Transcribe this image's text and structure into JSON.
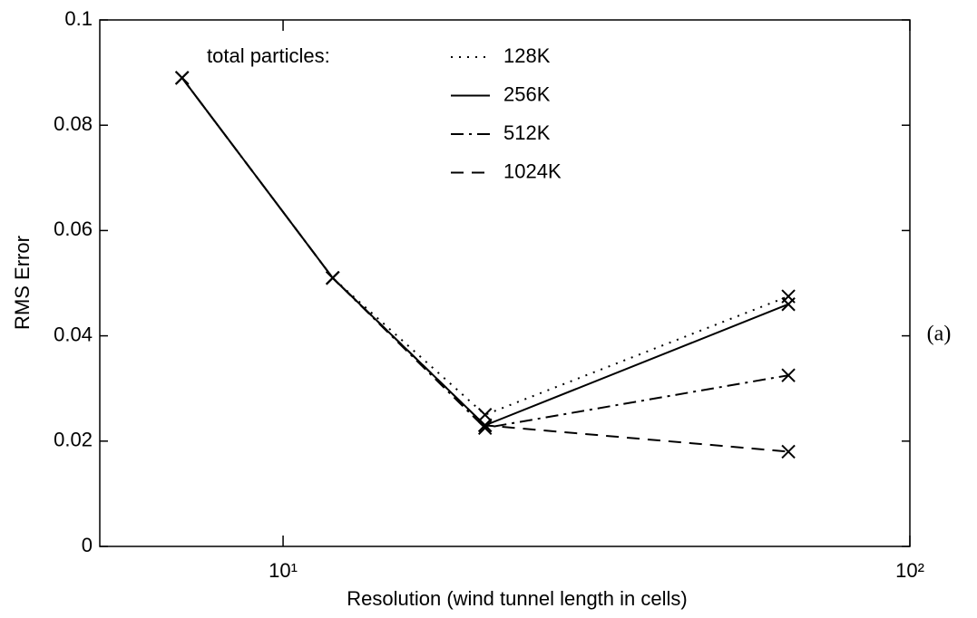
{
  "chart_data": {
    "type": "line",
    "xlabel": "Resolution (wind tunnel length in cells)",
    "ylabel": "RMS Error",
    "annotation": "(a)",
    "legend_title": "total particles:",
    "x": [
      6.9,
      12,
      21,
      64
    ],
    "series": [
      {
        "name": "128K",
        "color": "#000000",
        "linestyle": "dotted",
        "values": [
          0.089,
          0.051,
          0.025,
          0.0475
        ]
      },
      {
        "name": "256K",
        "color": "#000000",
        "linestyle": "solid",
        "values": [
          0.089,
          0.051,
          0.023,
          0.046
        ]
      },
      {
        "name": "512K",
        "color": "#000000",
        "linestyle": "dashdot",
        "values": [
          0.089,
          0.051,
          0.0225,
          0.0325
        ]
      },
      {
        "name": "1024K",
        "color": "#000000",
        "linestyle": "dashed",
        "values": [
          0.089,
          0.051,
          0.023,
          0.018
        ]
      }
    ],
    "xscale": "log",
    "xlim": [
      5.1,
      100
    ],
    "xticks": [
      {
        "value": 10,
        "label": "10¹"
      },
      {
        "value": 100,
        "label": "10²"
      }
    ],
    "ylim": [
      0,
      0.1
    ],
    "yticks": [
      0,
      0.02,
      0.04,
      0.06,
      0.08,
      0.1
    ],
    "marker": "x",
    "grid": false,
    "legend": "top"
  }
}
